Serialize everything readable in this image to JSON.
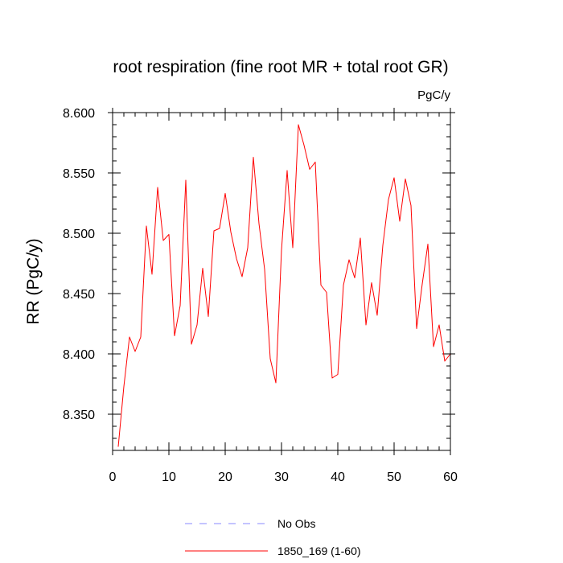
{
  "chart_data": {
    "type": "line",
    "title": "root respiration (fine root MR + total root GR)",
    "units_label": "PgC/y",
    "ylabel": "RR  (PgC/y)",
    "xlabel": "",
    "xlim": [
      0,
      60
    ],
    "ylim": [
      8.32,
      8.6
    ],
    "x_ticks": [
      0,
      10,
      20,
      30,
      40,
      50,
      60
    ],
    "x_tick_labels": [
      "0",
      "10",
      "20",
      "30",
      "40",
      "50",
      "60"
    ],
    "y_ticks": [
      8.35,
      8.4,
      8.45,
      8.5,
      8.55,
      8.6
    ],
    "y_tick_labels": [
      "8.350",
      "8.400",
      "8.450",
      "8.500",
      "8.550",
      "8.600"
    ],
    "grid": false,
    "legend_position": "bottom-center",
    "series": [
      {
        "name": "No Obs",
        "color": "#8888ff",
        "dash": true,
        "x": [],
        "values": []
      },
      {
        "name": "1850_169 (1-60)",
        "color": "#ff0000",
        "dash": false,
        "x": [
          1,
          2,
          3,
          4,
          5,
          6,
          7,
          8,
          9,
          10,
          11,
          12,
          13,
          14,
          15,
          16,
          17,
          18,
          19,
          20,
          21,
          22,
          23,
          24,
          25,
          26,
          27,
          28,
          29,
          30,
          31,
          32,
          33,
          34,
          35,
          36,
          37,
          38,
          39,
          40,
          41,
          42,
          43,
          44,
          45,
          46,
          47,
          48,
          49,
          50,
          51,
          52,
          53,
          54,
          55,
          56,
          57,
          58,
          59,
          60
        ],
        "values": [
          8.323,
          8.373,
          8.414,
          8.402,
          8.414,
          8.506,
          8.466,
          8.538,
          8.494,
          8.499,
          8.415,
          8.44,
          8.544,
          8.408,
          8.424,
          8.471,
          8.431,
          8.502,
          8.504,
          8.533,
          8.501,
          8.479,
          8.464,
          8.488,
          8.563,
          8.508,
          8.47,
          8.396,
          8.376,
          8.486,
          8.552,
          8.488,
          8.59,
          8.573,
          8.553,
          8.559,
          8.457,
          8.451,
          8.38,
          8.383,
          8.457,
          8.478,
          8.463,
          8.496,
          8.424,
          8.459,
          8.432,
          8.49,
          8.528,
          8.546,
          8.51,
          8.545,
          8.523,
          8.421,
          8.458,
          8.491,
          8.406,
          8.424,
          8.394,
          8.4
        ]
      }
    ]
  }
}
